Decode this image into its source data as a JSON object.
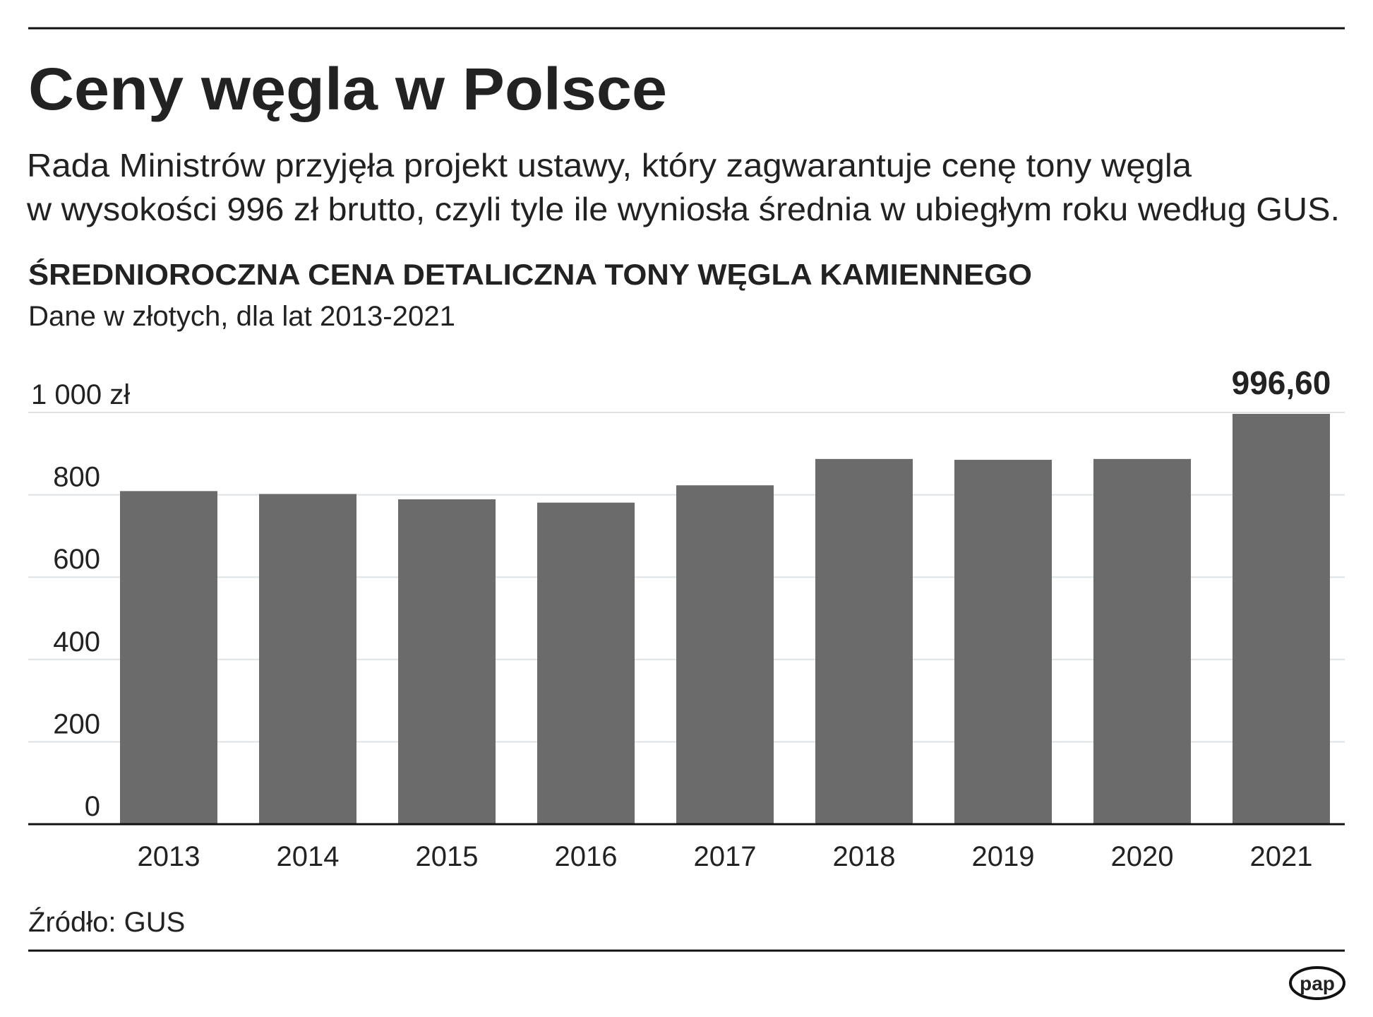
{
  "chart_data": {
    "type": "bar",
    "title": "Ceny węgla w Polsce",
    "description": [
      "Rada Ministrów przyjęła projekt ustawy, który zagwarantuje cenę tony węgla",
      "w wysokości 996 zł brutto, czyli tyle ile wyniosła średnia w ubiegłym roku według GUS."
    ],
    "chart_title": "ŚREDNIOROCZNA CENA DETALICZNA TONY WĘGLA KAMIENNEGO",
    "subtitle": "Dane w złotych, dla lat 2013-2021",
    "categories": [
      "2013",
      "2014",
      "2015",
      "2016",
      "2017",
      "2018",
      "2019",
      "2020",
      "2021"
    ],
    "values": [
      809,
      802,
      789,
      781,
      823,
      887,
      885,
      887,
      996.6
    ],
    "value_labels": [
      null,
      null,
      null,
      null,
      null,
      null,
      null,
      null,
      "996,60"
    ],
    "color": "#6b6b6b",
    "ylim": [
      0,
      1000
    ],
    "yticks": [
      0,
      200,
      400,
      600,
      800,
      {
        "value": 1000,
        "label": "1 000 zł"
      }
    ],
    "grid": true,
    "source": "Źródło: GUS",
    "logo": "pap"
  }
}
